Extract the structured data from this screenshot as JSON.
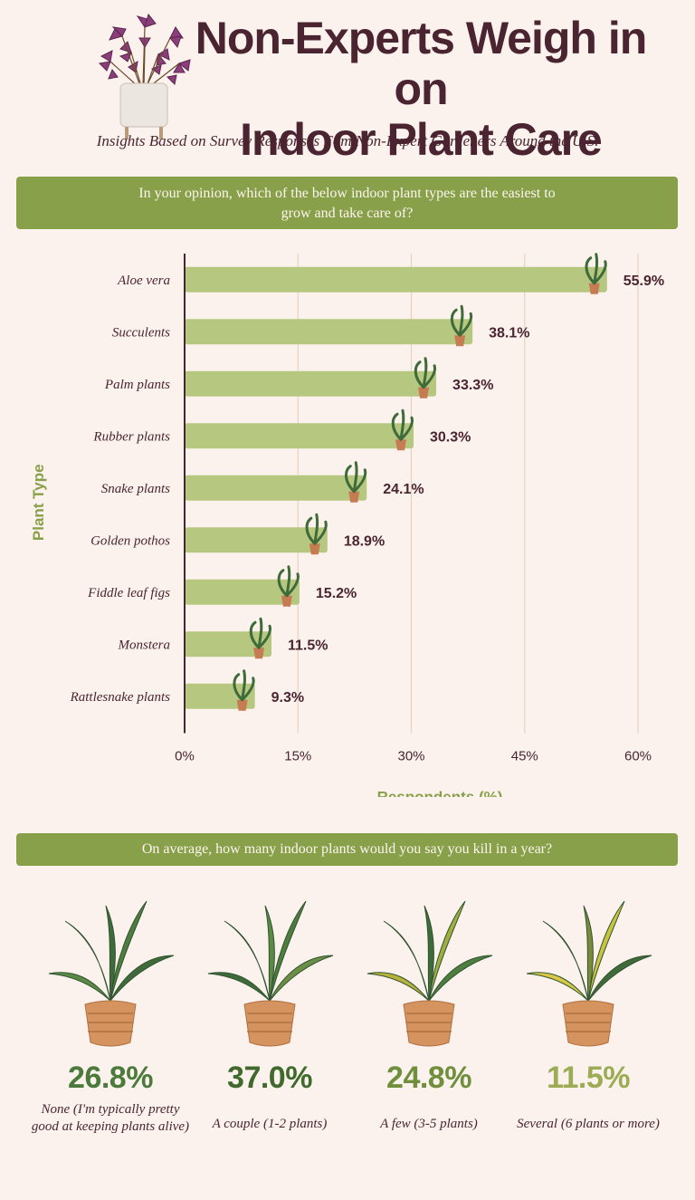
{
  "header": {
    "title_line1": "Non-Experts Weigh in on",
    "title_line2": "Indoor Plant Care",
    "subtitle": "Insights Based on Survey Responses Fom Non-Expert Gardeners Around the U.S."
  },
  "question1": "In your opinion, which of the below indoor plant types are the easiest to grow and take care of?",
  "chart_data": {
    "type": "bar",
    "orientation": "horizontal",
    "categories": [
      "Aloe vera",
      "Succulents",
      "Palm plants",
      "Rubber plants",
      "Snake plants",
      "Golden pothos",
      "Fiddle leaf figs",
      "Monstera",
      "Rattlesnake plants"
    ],
    "values": [
      55.9,
      38.1,
      33.3,
      30.3,
      24.1,
      18.9,
      15.2,
      11.5,
      9.3
    ],
    "value_labels": [
      "55.9%",
      "38.1%",
      "33.3%",
      "30.3%",
      "24.1%",
      "18.9%",
      "15.2%",
      "11.5%",
      "9.3%"
    ],
    "xlabel": "Respondents (%)",
    "ylabel": "Plant Type",
    "xlim": [
      0,
      60
    ],
    "xticks": [
      0,
      15,
      30,
      45,
      60
    ],
    "xtick_labels": [
      "0%",
      "15%",
      "30%",
      "45%",
      "60%"
    ],
    "grid": true,
    "colors": {
      "bar": "#b6c77f",
      "grid": "#e4d3c2",
      "axis": "#4a2431",
      "label": "#4a2431",
      "axis_title": "#89a04a"
    }
  },
  "question2": "On average, how many indoor plants would you say you kill in a year?",
  "kill_stats": [
    {
      "value": "26.8%",
      "label": "None (I'm typically pretty good at keeping plants alive)",
      "color": "#4b7a3a"
    },
    {
      "value": "37.0%",
      "label": "A couple (1-2 plants)",
      "color": "#3f6a2c"
    },
    {
      "value": "24.8%",
      "label": "A few (3-5 plants)",
      "color": "#6f8f3c"
    },
    {
      "value": "11.5%",
      "label": "Several (6 plants or more)",
      "color": "#9bac55"
    }
  ]
}
